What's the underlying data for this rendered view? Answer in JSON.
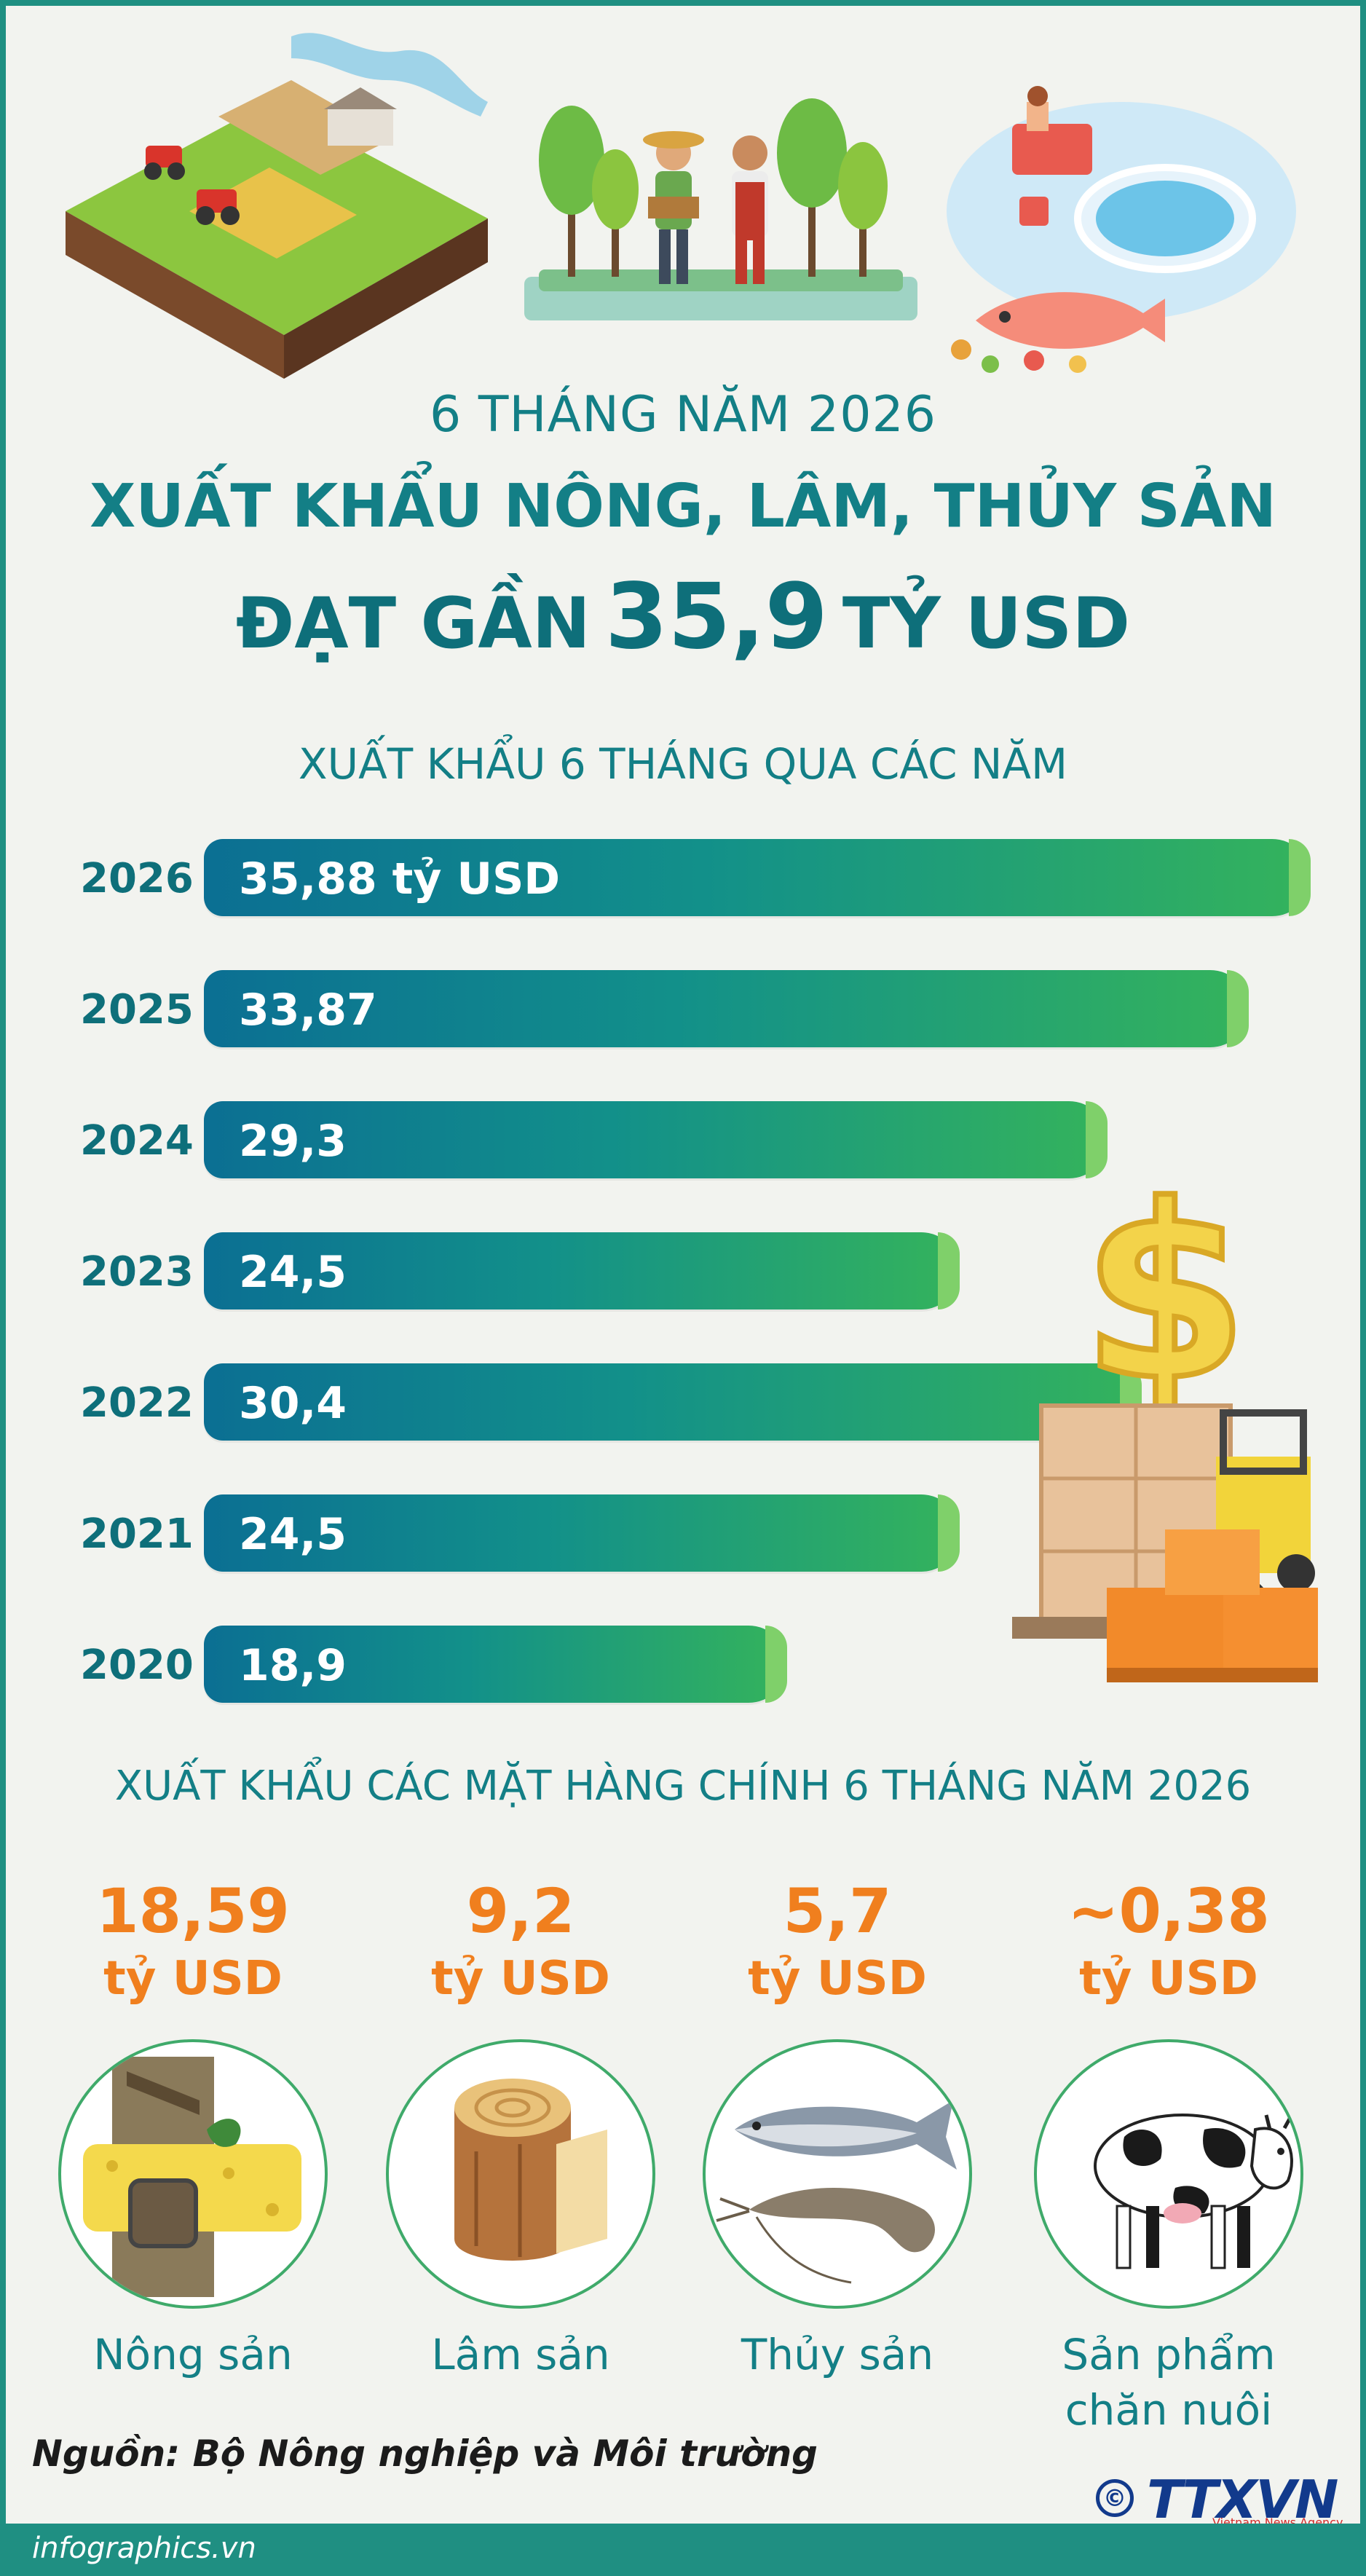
{
  "header": {
    "subtitle": "6 THÁNG NĂM 2026",
    "title_line1": "XUẤT KHẨU NÔNG, LÂM, THỦY SẢN",
    "title_line2_pre": "ĐẠT GẦN",
    "title_line2_num": "35,9",
    "title_line2_post": "TỶ USD"
  },
  "chart_data": {
    "type": "bar",
    "orientation": "horizontal",
    "title": "XUẤT KHẨU 6 THÁNG QUA CÁC NĂM",
    "categories": [
      "2026",
      "2025",
      "2024",
      "2023",
      "2022",
      "2021",
      "2020"
    ],
    "values": [
      35.88,
      33.87,
      29.3,
      24.5,
      30.4,
      24.5,
      18.9
    ],
    "labels": [
      "35,88 tỷ USD",
      "33,87",
      "29,3",
      "24,5",
      "30,4",
      "24,5",
      "18,9"
    ],
    "unit": "tỷ USD",
    "xlabel": "",
    "ylabel": ""
  },
  "products": {
    "title": "XUẤT KHẨU CÁC MẶT HÀNG CHÍNH 6 THÁNG NĂM 2026",
    "items": [
      {
        "value": "18,59",
        "unit": "tỷ USD",
        "name_lines": [
          "Nông sản"
        ],
        "icon": "rubber-tree-icon"
      },
      {
        "value": "9,2",
        "unit": "tỷ USD",
        "name_lines": [
          "Lâm sản"
        ],
        "icon": "wood-stump-icon"
      },
      {
        "value": "5,7",
        "unit": "tỷ USD",
        "name_lines": [
          "Thủy sản"
        ],
        "icon": "fish-shrimp-icon"
      },
      {
        "value": "~0,38",
        "unit": "tỷ USD",
        "name_lines": [
          "Sản phẩm",
          "chăn nuôi"
        ],
        "icon": "cow-icon"
      }
    ]
  },
  "source": "Nguồn: Bộ Nông nghiệp và Môi trường",
  "footer": "infographics.vn",
  "logo": {
    "text": "TTXVN",
    "sub": "Vietnam News Agency",
    "copyright": "©"
  },
  "colors": {
    "primary": "#137f86",
    "accent": "#f07f1e",
    "bar_start": "#0b6f93",
    "bar_end": "#34b35c",
    "frame": "#1f8f82"
  }
}
